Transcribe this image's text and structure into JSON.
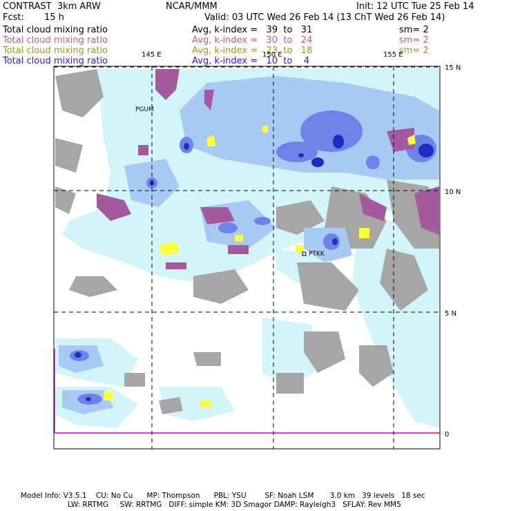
{
  "header": {
    "model": "CONTRAST  3km ARW",
    "org": "NCAR/MMM",
    "init": "Init: 12 UTC Tue 25 Feb 14",
    "fcst_label": "Fcst:",
    "fcst_value": "15 h",
    "valid": "Valid: 03 UTC Wed 26 Feb 14 (13 ChT Wed 26 Feb 14)"
  },
  "legend": [
    {
      "name": "Total cloud mixing ratio",
      "stat": "Avg, k-index =   39  to   31",
      "sm": "sm= 2",
      "color": "#000000"
    },
    {
      "name": "Total cloud mixing ratio",
      "stat": "Avg, k-index =   30  to   24",
      "sm": "sm= 2",
      "color": "#b45aa8"
    },
    {
      "name": "Total cloud mixing ratio",
      "stat": "Avg, k-index =   23  to   18",
      "sm": "sm= 2",
      "color": "#9a9a1e"
    },
    {
      "name": "Total cloud mixing ratio",
      "stat": "Avg, k-index =   10  to    4",
      "sm": "",
      "color": "#2323d2"
    }
  ],
  "map": {
    "lon_labels": [
      "145 E",
      "150 E",
      "155 E"
    ],
    "lat_labels": [
      "15 N",
      "10 N",
      "5 N",
      "0"
    ],
    "stations": [
      "PGUM",
      "PTKK"
    ],
    "colors": {
      "gray": "#a6a6a6",
      "pink": "#a35b9d",
      "yellow": "#ffff3c",
      "lightcyan": "#d3f4f9",
      "lightblue": "#a9c9f5",
      "blue": "#6f82e8",
      "darkblue": "#1e2cc0",
      "magenta": "#e23be2"
    }
  },
  "footer": {
    "line1": "Model Info: V3.5.1    CU: No Cu      MP: Thompson      PBL: YSU        SF: Noah LSM       3.0 km   39 levels   18 sec",
    "line2": "LW: RRTMG     SW: RRTMG   DIFF: simple KM: 3D Smagor DAMP: Rayleigh3   SFLAY: Rev MM5"
  }
}
